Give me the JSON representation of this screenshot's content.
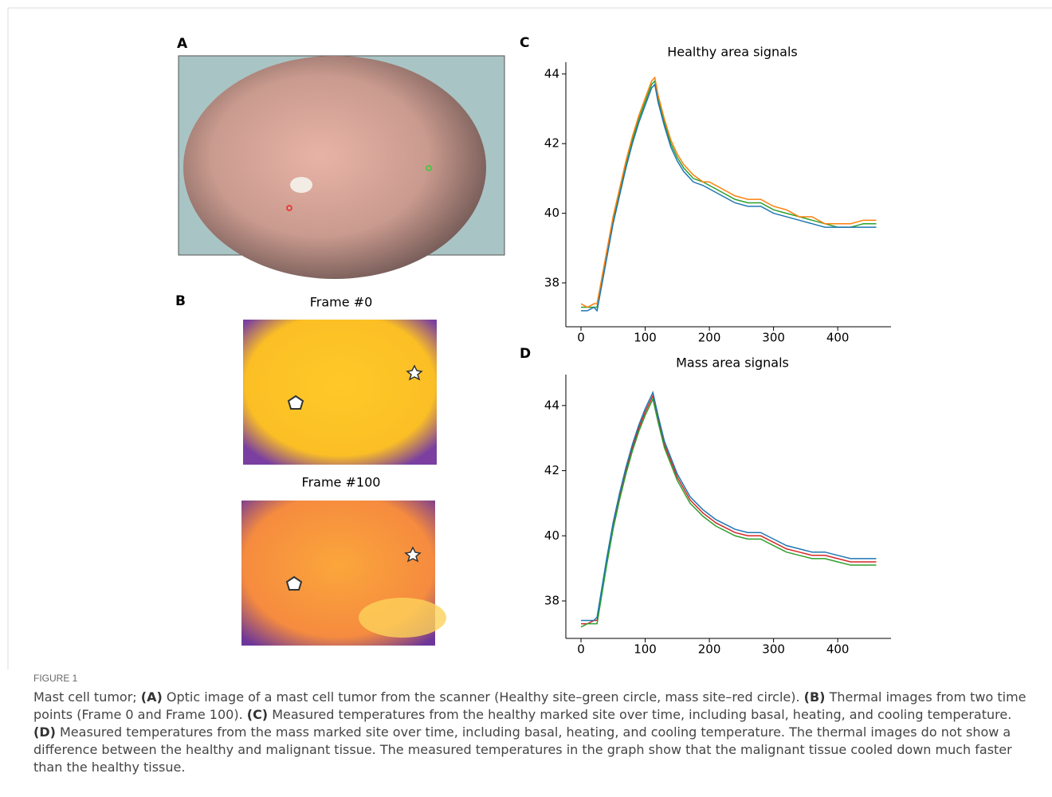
{
  "panels": {
    "A": {
      "label": "A"
    },
    "B": {
      "label": "B",
      "frames": [
        "Frame #0",
        "Frame #100"
      ]
    }
  },
  "chart_data": [
    {
      "type": "line",
      "panel": "C",
      "title": "Healthy area signals",
      "x": [
        0,
        10,
        20,
        25,
        30,
        40,
        50,
        60,
        70,
        80,
        90,
        100,
        110,
        115,
        120,
        130,
        140,
        150,
        160,
        175,
        190,
        200,
        220,
        240,
        260,
        280,
        300,
        320,
        340,
        360,
        380,
        400,
        420,
        440,
        460
      ],
      "series": [
        {
          "color": "#2ca02c",
          "values": [
            37.3,
            37.3,
            37.3,
            37.3,
            37.8,
            38.8,
            39.8,
            40.6,
            41.4,
            42.1,
            42.7,
            43.2,
            43.7,
            43.8,
            43.3,
            42.6,
            42.0,
            41.6,
            41.3,
            41.0,
            40.9,
            40.8,
            40.6,
            40.4,
            40.3,
            40.3,
            40.1,
            40.0,
            39.9,
            39.8,
            39.7,
            39.6,
            39.6,
            39.7,
            39.7
          ]
        },
        {
          "color": "#ff7f0e",
          "values": [
            37.4,
            37.3,
            37.4,
            37.4,
            37.9,
            38.9,
            39.9,
            40.7,
            41.5,
            42.2,
            42.8,
            43.3,
            43.8,
            43.9,
            43.4,
            42.7,
            42.1,
            41.7,
            41.4,
            41.1,
            40.9,
            40.9,
            40.7,
            40.5,
            40.4,
            40.4,
            40.2,
            40.1,
            39.9,
            39.9,
            39.7,
            39.7,
            39.7,
            39.8,
            39.8
          ]
        },
        {
          "color": "#1f77b4",
          "values": [
            37.2,
            37.2,
            37.3,
            37.2,
            37.7,
            38.7,
            39.7,
            40.5,
            41.3,
            42.0,
            42.6,
            43.1,
            43.6,
            43.7,
            43.2,
            42.5,
            41.9,
            41.5,
            41.2,
            40.9,
            40.8,
            40.7,
            40.5,
            40.3,
            40.2,
            40.2,
            40.0,
            39.9,
            39.8,
            39.7,
            39.6,
            39.6,
            39.6,
            39.6,
            39.6
          ]
        }
      ],
      "xlim": [
        -23.6,
        483
      ],
      "ylim": [
        36.74,
        44.34
      ],
      "xticks": [
        0,
        100,
        200,
        300,
        400
      ],
      "yticks": [
        38,
        40,
        42,
        44
      ]
    },
    {
      "type": "line",
      "panel": "D",
      "title": "Mass area signals",
      "x": [
        0,
        10,
        20,
        25,
        30,
        40,
        50,
        60,
        70,
        80,
        90,
        100,
        112,
        120,
        130,
        150,
        170,
        190,
        210,
        240,
        260,
        280,
        300,
        320,
        340,
        360,
        380,
        400,
        420,
        440,
        460
      ],
      "series": [
        {
          "color": "#d62728",
          "values": [
            37.3,
            37.3,
            37.4,
            37.4,
            38.0,
            39.2,
            40.3,
            41.2,
            42.0,
            42.7,
            43.3,
            43.8,
            44.3,
            43.6,
            42.8,
            41.8,
            41.1,
            40.7,
            40.4,
            40.1,
            40.0,
            40.0,
            39.8,
            39.6,
            39.5,
            39.4,
            39.4,
            39.3,
            39.2,
            39.2,
            39.2
          ]
        },
        {
          "color": "#2ca02c",
          "values": [
            37.2,
            37.3,
            37.3,
            37.3,
            37.9,
            39.1,
            40.2,
            41.1,
            41.9,
            42.6,
            43.2,
            43.7,
            44.2,
            43.5,
            42.7,
            41.7,
            41.0,
            40.6,
            40.3,
            40.0,
            39.9,
            39.9,
            39.7,
            39.5,
            39.4,
            39.3,
            39.3,
            39.2,
            39.1,
            39.1,
            39.1
          ]
        },
        {
          "color": "#1f77b4",
          "values": [
            37.4,
            37.4,
            37.4,
            37.5,
            38.1,
            39.3,
            40.4,
            41.3,
            42.1,
            42.8,
            43.4,
            43.9,
            44.4,
            43.7,
            42.9,
            41.9,
            41.2,
            40.8,
            40.5,
            40.2,
            40.1,
            40.1,
            39.9,
            39.7,
            39.6,
            39.5,
            39.5,
            39.4,
            39.3,
            39.3,
            39.3
          ]
        }
      ],
      "xlim": [
        -23.6,
        483
      ],
      "ylim": [
        36.85,
        44.95
      ],
      "xticks": [
        0,
        100,
        200,
        300,
        400
      ],
      "yticks": [
        38,
        40,
        42,
        44
      ]
    }
  ],
  "caption": {
    "label": "FIGURE 1",
    "parts": [
      {
        "text": "Mast cell tumor; "
      },
      {
        "text": "(A)",
        "bold": true
      },
      {
        "text": " Optic image of a mast cell tumor from the scanner (Healthy site–green circle, mass site–red circle). "
      },
      {
        "text": "(B)",
        "bold": true
      },
      {
        "text": " Thermal images from two time points (Frame 0 and Frame 100). "
      },
      {
        "text": "(C)",
        "bold": true
      },
      {
        "text": " Measured temperatures from the healthy marked site over time, including basal, heating, and cooling temperature. "
      },
      {
        "text": "(D)",
        "bold": true
      },
      {
        "text": " Measured temperatures from the mass marked site over time, including basal, heating, and cooling temperature. The thermal images do not show a difference between the healthy and malignant tissue. The measured temperatures in the graph show that the malignant tissue cooled down much faster than the healthy tissue."
      }
    ]
  }
}
